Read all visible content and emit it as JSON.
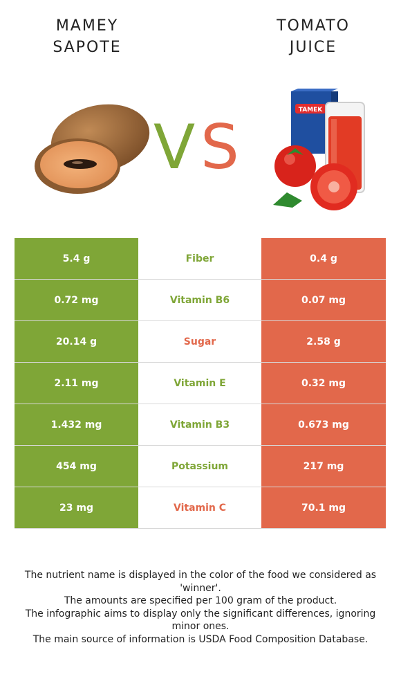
{
  "left_food": {
    "title": "MAMEY\nSAPOTE",
    "color": "#7fa637"
  },
  "right_food": {
    "title": "TOMATO\nJUICE",
    "color": "#e2684b",
    "package_text": "TAMEK"
  },
  "vs": {
    "v": "V",
    "s": "S"
  },
  "rows": [
    {
      "left": "5.4 g",
      "nutrient": "Fiber",
      "right": "0.4 g",
      "winner": "left"
    },
    {
      "left": "0.72 mg",
      "nutrient": "Vitamin B6",
      "right": "0.07 mg",
      "winner": "left"
    },
    {
      "left": "20.14 g",
      "nutrient": "Sugar",
      "right": "2.58 g",
      "winner": "right"
    },
    {
      "left": "2.11 mg",
      "nutrient": "Vitamin E",
      "right": "0.32 mg",
      "winner": "left"
    },
    {
      "left": "1.432 mg",
      "nutrient": "Vitamin B3",
      "right": "0.673 mg",
      "winner": "left"
    },
    {
      "left": "454 mg",
      "nutrient": "Potassium",
      "right": "217 mg",
      "winner": "left"
    },
    {
      "left": "23 mg",
      "nutrient": "Vitamin C",
      "right": "70.1 mg",
      "winner": "right"
    }
  ],
  "notes": [
    "The nutrient name is displayed in the color of the food we considered as 'winner'.",
    "The amounts are specified per 100 gram of the product.",
    "The infographic aims to display only the significant differences, ignoring minor ones.",
    "The main source of information is USDA Food Composition Database."
  ]
}
